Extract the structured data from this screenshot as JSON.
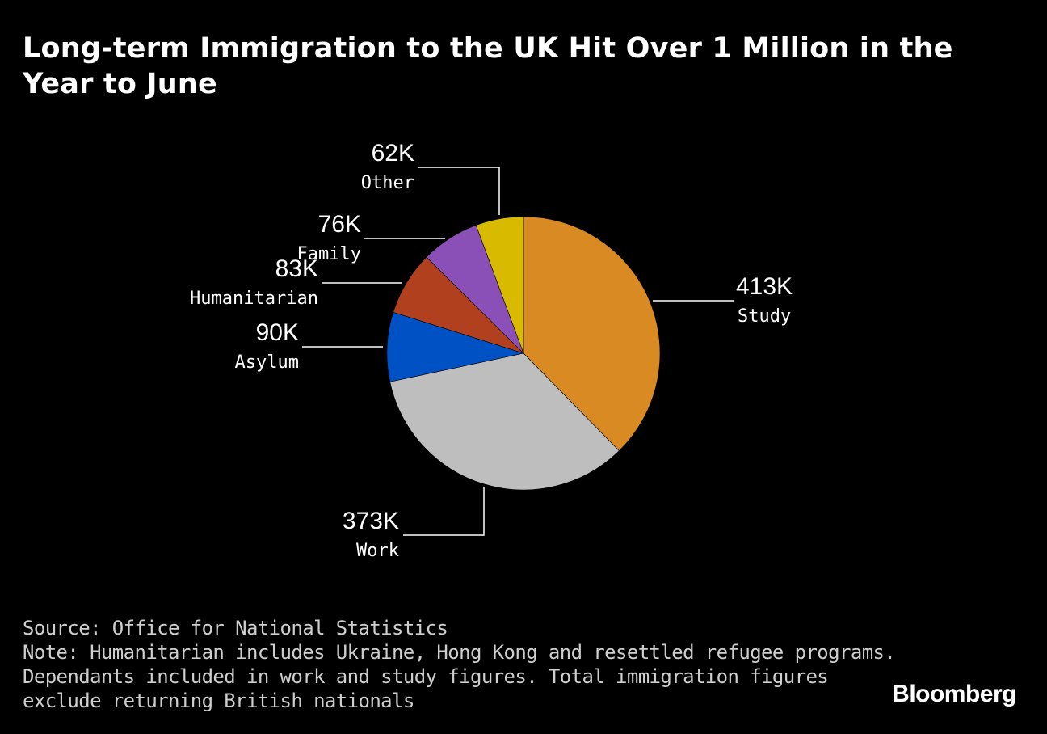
{
  "title": "Long-term Immigration to the UK Hit Over 1 Million in the Year to June",
  "chart_data": {
    "type": "pie",
    "title": "Long-term Immigration to the UK Hit Over 1 Million in the Year to June",
    "unit": "K",
    "slices": [
      {
        "label": "Study",
        "value": 413,
        "value_label": "413K",
        "color": "#D98A22"
      },
      {
        "label": "Work",
        "value": 373,
        "value_label": "373K",
        "color": "#BEBEBE"
      },
      {
        "label": "Asylum",
        "value": 90,
        "value_label": "90K",
        "color": "#0052C4"
      },
      {
        "label": "Humanitarian",
        "value": 83,
        "value_label": "83K",
        "color": "#B0401E"
      },
      {
        "label": "Family",
        "value": 76,
        "value_label": "76K",
        "color": "#8B50B8"
      },
      {
        "label": "Other",
        "value": 62,
        "value_label": "62K",
        "color": "#D8BB00"
      }
    ]
  },
  "footer": {
    "source": "Source: Office for National Statistics",
    "note_line1": "Note: Humanitarian includes Ukraine, Hong Kong and resettled refugee programs.",
    "note_line2": "Dependants included in work and study figures. Total immigration figures",
    "note_line3": "exclude returning British nationals"
  },
  "brand": "Bloomberg"
}
